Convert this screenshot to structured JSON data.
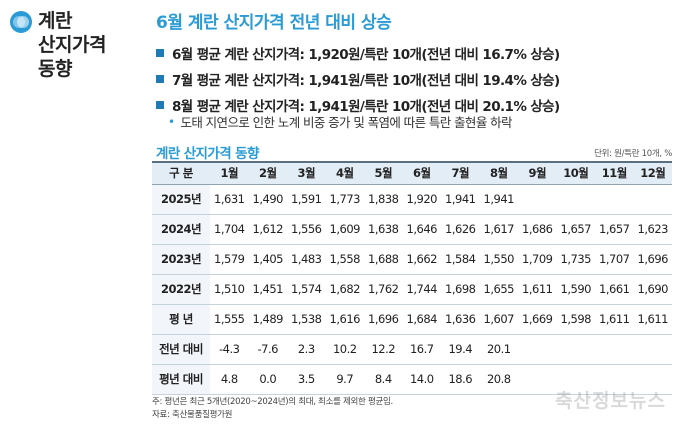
{
  "sidebar": {
    "title_line1": "계란",
    "title_line2": "산지가격",
    "title_line3": "동향"
  },
  "headline": "6월 계란 산지가격 전년 대비 상승",
  "bullets": [
    {
      "text": "6월 평균 계란 산지가격: 1,920원/특란 10개(전년 대비 16.7% 상승)"
    },
    {
      "text": "7월 평균 계란 산지가격: 1,941원/특란 10개(전년 대비 19.4% 상승)"
    },
    {
      "text": "8월 평균 계란 산지가격: 1,941원/특란 10개(전년 대비 20.1% 상승)"
    }
  ],
  "note": "도태 지연으로 인한 노계 비중 증가 및 폭염에 따른 특란 출현율 하락",
  "colors": {
    "accent": "#2a9bd5",
    "bullet_square": "#1f7ab8",
    "header_bg": "#e3edf6"
  },
  "table": {
    "title": "계란 산지가격 동향",
    "unit": "단위: 원/특란 10개, %",
    "headers": [
      "구 분",
      "1월",
      "2월",
      "3월",
      "4월",
      "5월",
      "6월",
      "7월",
      "8월",
      "9월",
      "10월",
      "11월",
      "12월"
    ],
    "rows": [
      [
        "2025년",
        "1,631",
        "1,490",
        "1,591",
        "1,773",
        "1,838",
        "1,920",
        "1,941",
        "1,941",
        "",
        "",
        "",
        ""
      ],
      [
        "2024년",
        "1,704",
        "1,612",
        "1,556",
        "1,609",
        "1,638",
        "1,646",
        "1,626",
        "1,617",
        "1,686",
        "1,657",
        "1,657",
        "1,623"
      ],
      [
        "2023년",
        "1,579",
        "1,405",
        "1,483",
        "1,558",
        "1,688",
        "1,662",
        "1,584",
        "1,550",
        "1,709",
        "1,735",
        "1,707",
        "1,696"
      ],
      [
        "2022년",
        "1,510",
        "1,451",
        "1,574",
        "1,682",
        "1,762",
        "1,744",
        "1,698",
        "1,655",
        "1,611",
        "1,590",
        "1,661",
        "1,690"
      ],
      [
        "평 년",
        "1,555",
        "1,489",
        "1,538",
        "1,616",
        "1,696",
        "1,684",
        "1,636",
        "1,607",
        "1,669",
        "1,598",
        "1,611",
        "1,611"
      ],
      [
        "전년 대비",
        "-4.3",
        "-7.6",
        "2.3",
        "10.2",
        "12.2",
        "16.7",
        "19.4",
        "20.1",
        "",
        "",
        "",
        ""
      ],
      [
        "평년 대비",
        "4.8",
        "0.0",
        "3.5",
        "9.7",
        "8.4",
        "14.0",
        "18.6",
        "20.8",
        "",
        "",
        "",
        ""
      ]
    ]
  },
  "footnotes": {
    "line1": "주: 평년은 최근 5개년(2020~2024년)의 최대, 최소를 제외한 평균임.",
    "line2": "자료: 축산물품질평가원"
  },
  "watermark": "축산정보뉴스",
  "icons": {
    "logo": "egg-logo-icon",
    "bullet": "square-bullet-icon",
    "note_bullet": "dot-bullet-icon"
  }
}
